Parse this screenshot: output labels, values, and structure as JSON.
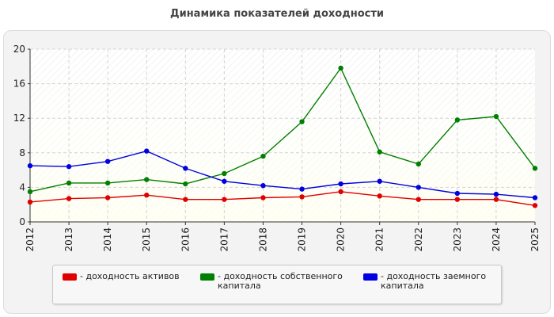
{
  "chart_data": {
    "type": "line",
    "title": "Динамика показателей доходности",
    "x": [
      "2012",
      "2013",
      "2014",
      "2015",
      "2016",
      "2017",
      "2018",
      "2019",
      "2020",
      "2021",
      "2022",
      "2023",
      "2024",
      "2025"
    ],
    "ylim": [
      0,
      20
    ],
    "yticks": [
      "0",
      "4",
      "8",
      "12",
      "16",
      "20"
    ],
    "grid": true,
    "legend_position": "bottom",
    "series": [
      {
        "name": "- доходность активов",
        "color": "#e00000",
        "values": [
          2.3,
          2.7,
          2.8,
          3.1,
          2.6,
          2.6,
          2.8,
          2.9,
          3.5,
          3.0,
          2.6,
          2.6,
          2.6,
          1.9
        ]
      },
      {
        "name": "- доходность собственного капитала",
        "color": "#008000",
        "values": [
          3.5,
          4.5,
          4.5,
          4.9,
          4.4,
          5.6,
          7.6,
          11.6,
          17.8,
          8.1,
          6.7,
          11.8,
          12.2,
          6.2
        ]
      },
      {
        "name": "- доходность заемного капитала",
        "color": "#0000e0",
        "values": [
          6.5,
          6.4,
          7.0,
          8.2,
          6.2,
          4.7,
          4.2,
          3.8,
          4.4,
          4.7,
          4.0,
          3.3,
          3.2,
          2.8
        ]
      }
    ]
  }
}
